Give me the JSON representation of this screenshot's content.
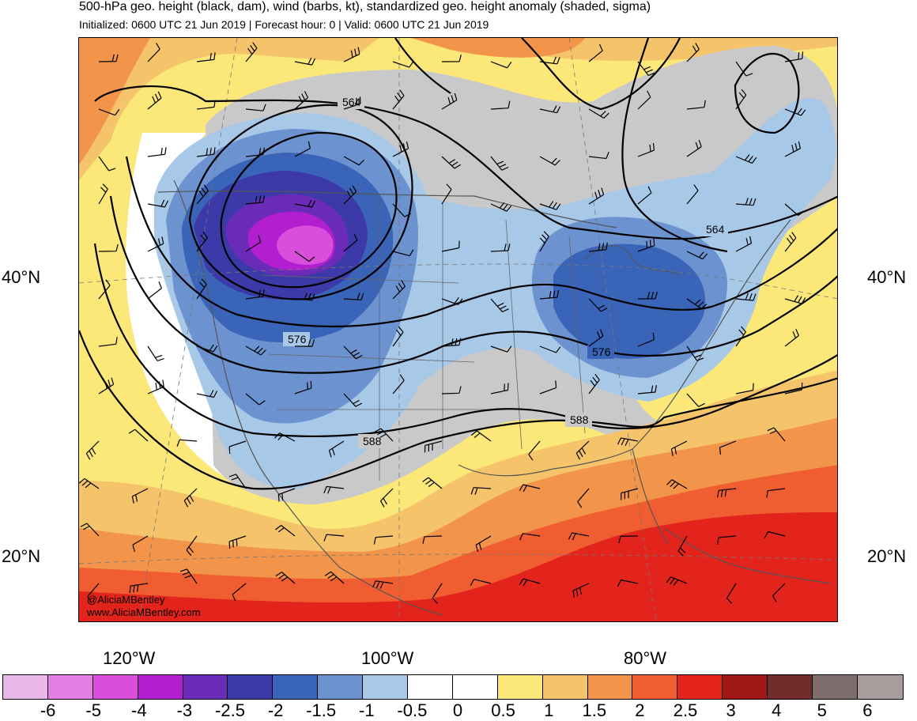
{
  "header": {
    "title": "500-hPa geo. height (black, dam), wind (barbs, kt), standardized geo. height anomaly (shaded, sigma)",
    "subtitle": "Initialized: 0600 UTC 21 Jun 2019 | Forecast hour: 0 | Valid: 0600 UTC 21 Jun 2019"
  },
  "map": {
    "lat_labels": [
      "40°N",
      "20°N"
    ],
    "lon_labels": [
      "120°W",
      "100°W",
      "80°W"
    ],
    "contour_labels": [
      "564",
      "576",
      "588",
      "564",
      "576",
      "588"
    ],
    "credit_line1": "@AliciaMBentley",
    "credit_line2": "www.AliciaMBentley.com"
  },
  "colorbar": {
    "labels": [
      "-6",
      "-5",
      "-4",
      "-3",
      "-2.5",
      "-2",
      "-1.5",
      "-1",
      "-0.5",
      "0",
      "0.5",
      "1",
      "1.5",
      "2",
      "2.5",
      "3",
      "4",
      "5",
      "6"
    ],
    "colors": [
      "#e9b8ea",
      "#e37ee5",
      "#d94fdc",
      "#b31fd0",
      "#6a2bb8",
      "#3b3aa8",
      "#3a64b8",
      "#6c92d0",
      "#a8c8e8",
      "#ffffff",
      "#ffffff",
      "#fbe879",
      "#f5c46a",
      "#f2944a",
      "#ef5d30",
      "#e2241d",
      "#9e1616",
      "#722c2c",
      "#7e6d6d",
      "#a99c9c"
    ]
  },
  "colors": {
    "land_gray": "#c9c9c9",
    "contour": "#000000",
    "border": "#555555"
  }
}
